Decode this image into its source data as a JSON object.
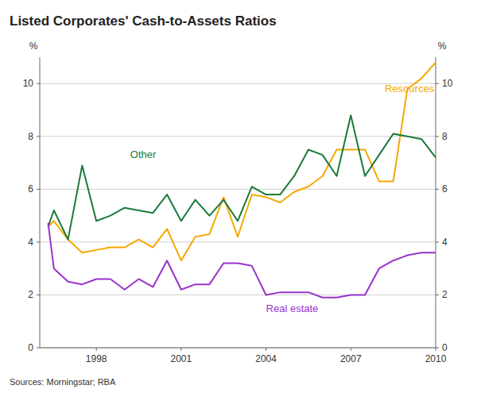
{
  "chart_data": {
    "type": "line",
    "title": "Listed Corporates' Cash-to-Assets Ratios",
    "source": "Sources: Morningstar; RBA",
    "ylabel": "%",
    "y2label": "%",
    "x": [
      1996.3,
      1996.5,
      1997,
      1997.5,
      1998,
      1998.5,
      1999,
      1999.5,
      2000,
      2000.5,
      2001,
      2001.5,
      2002,
      2002.5,
      2003,
      2003.5,
      2004,
      2004.5,
      2005,
      2005.5,
      2006,
      2006.5,
      2007,
      2007.5,
      2008,
      2008.5,
      2009,
      2009.5,
      2010
    ],
    "series": [
      {
        "color": "#f5a800",
        "values": [
          4.6,
          4.8,
          4.1,
          3.6,
          3.7,
          3.8,
          3.8,
          4.1,
          3.8,
          4.5,
          3.3,
          4.2,
          4.3,
          5.7,
          4.2,
          5.8,
          5.7,
          5.5,
          5.9,
          6.1,
          6.5,
          7.5,
          7.5,
          7.5,
          6.3,
          6.3,
          9.8,
          10.2,
          10.8
        ]
      },
      {
        "color": "#1a7a3a",
        "values": [
          4.6,
          5.2,
          4.1,
          6.9,
          4.8,
          5.0,
          5.3,
          5.2,
          5.1,
          5.8,
          4.8,
          5.6,
          5.0,
          5.6,
          4.8,
          6.1,
          5.8,
          5.8,
          6.5,
          7.5,
          7.3,
          6.5,
          8.8,
          6.5,
          7.3,
          8.1,
          8.0,
          7.9,
          7.2
        ]
      },
      {
        "color": "#9932cc",
        "values": [
          4.7,
          3.0,
          2.5,
          2.4,
          2.6,
          2.6,
          2.2,
          2.6,
          2.3,
          3.3,
          2.2,
          2.4,
          2.4,
          3.2,
          3.2,
          3.1,
          2.0,
          2.1,
          2.1,
          2.1,
          1.9,
          1.9,
          2.0,
          2.0,
          3.0,
          3.3,
          3.5,
          3.6,
          3.6
        ]
      }
    ],
    "annotations": [
      {
        "text": "Resources",
        "x": 2008.2,
        "y": 9.6
      },
      {
        "text": "Other",
        "x": 1999.2,
        "y": 7.1
      },
      {
        "text": "Real estate",
        "x": 2004.0,
        "y": 1.25
      }
    ],
    "xlim": [
      1996,
      2010
    ],
    "xticks": [
      1998,
      2001,
      2004,
      2007,
      2010
    ],
    "ylim": [
      0,
      11
    ],
    "yticks": [
      0,
      2,
      4,
      6,
      8,
      10
    ],
    "y2lim": [
      0,
      11
    ],
    "y2ticks": [
      0,
      2,
      4,
      6,
      8,
      10
    ],
    "grid": true
  }
}
